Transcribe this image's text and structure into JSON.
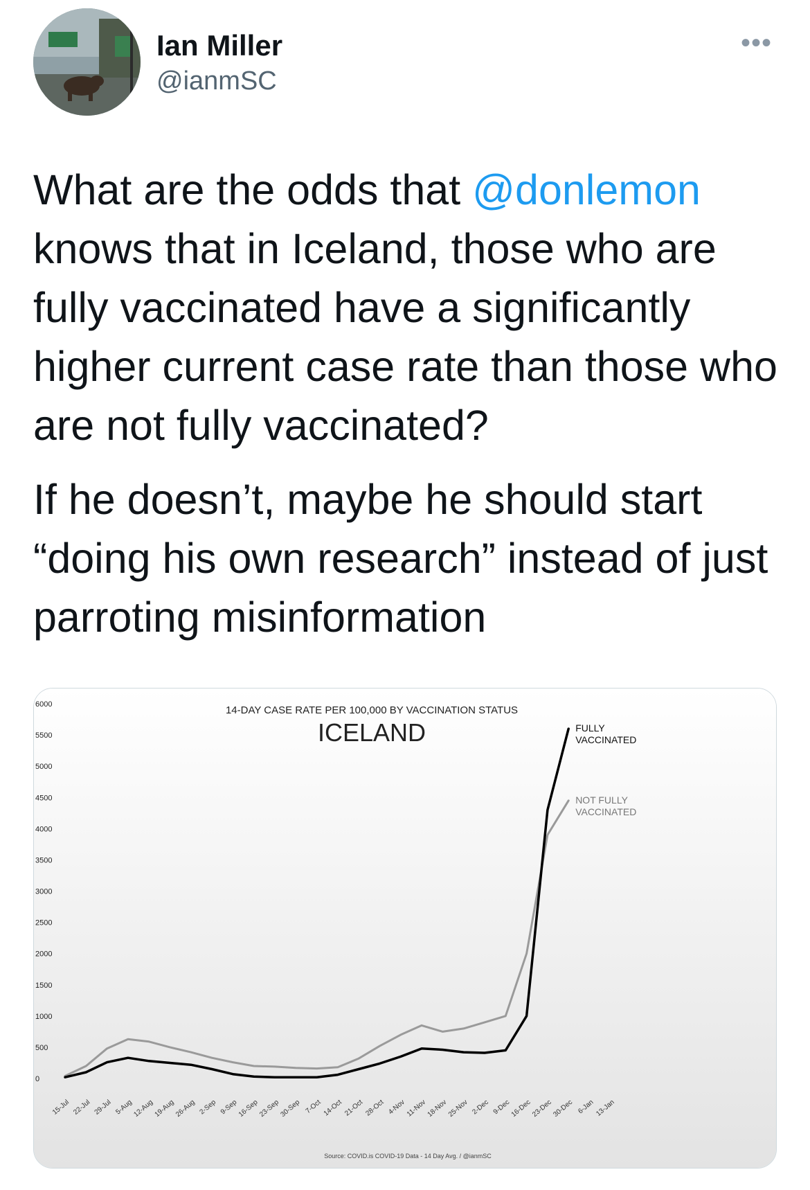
{
  "author": {
    "name": "Ian Miller",
    "handle": "@ianmSC"
  },
  "more_icon_label": "•••",
  "tweet": {
    "p1_before": "What are the odds that ",
    "p1_mention": "@donlemon",
    "p1_after": " knows that in Iceland, those who are fully vaccinated have a significantly higher current case rate than those who are not fully vaccinated?",
    "p2": "If he doesn’t, maybe he should start “doing his own research” instead of just parroting misinformation"
  },
  "colors": {
    "fully": "#000000",
    "not_fully": "#9a9a9a",
    "mention": "#1d9bf0"
  },
  "chart_data": {
    "type": "line",
    "title": "14-DAY CASE RATE PER 100,000 BY VACCINATION STATUS",
    "subtitle": "ICELAND",
    "source": "Source: COVID.is COVID-19 Data - 14 Day Avg. / @ianmSC",
    "ylim": [
      0,
      6000
    ],
    "yticks": [
      "6000",
      "5500",
      "5000",
      "4500",
      "4000",
      "3500",
      "3000",
      "2500",
      "2000",
      "1500",
      "1000",
      "500",
      "0"
    ],
    "categories": [
      "15-Jul",
      "22-Jul",
      "29-Jul",
      "5-Aug",
      "12-Aug",
      "19-Aug",
      "26-Aug",
      "2-Sep",
      "9-Sep",
      "16-Sep",
      "23-Sep",
      "30-Sep",
      "7-Oct",
      "14-Oct",
      "21-Oct",
      "28-Oct",
      "4-Nov",
      "11-Nov",
      "18-Nov",
      "25-Nov",
      "2-Dec",
      "9-Dec",
      "16-Dec",
      "23-Dec",
      "30-Dec",
      "6-Jan",
      "13-Jan"
    ],
    "series": [
      {
        "name": "FULLY VACCINATED",
        "label_lines": [
          "FULLY",
          "VACCINATED"
        ],
        "values": [
          20,
          100,
          260,
          330,
          280,
          250,
          220,
          150,
          70,
          30,
          20,
          20,
          20,
          60,
          150,
          240,
          350,
          480,
          460,
          420,
          410,
          450,
          1000,
          4300,
          5600,
          null,
          null
        ]
      },
      {
        "name": "NOT FULLY VACCINATED",
        "label_lines": [
          "NOT FULLY",
          "VACCINATED"
        ],
        "values": [
          40,
          200,
          480,
          630,
          590,
          500,
          420,
          330,
          260,
          200,
          190,
          170,
          160,
          180,
          320,
          520,
          700,
          850,
          750,
          800,
          900,
          1000,
          2000,
          3900,
          4450,
          null,
          null
        ]
      }
    ]
  }
}
